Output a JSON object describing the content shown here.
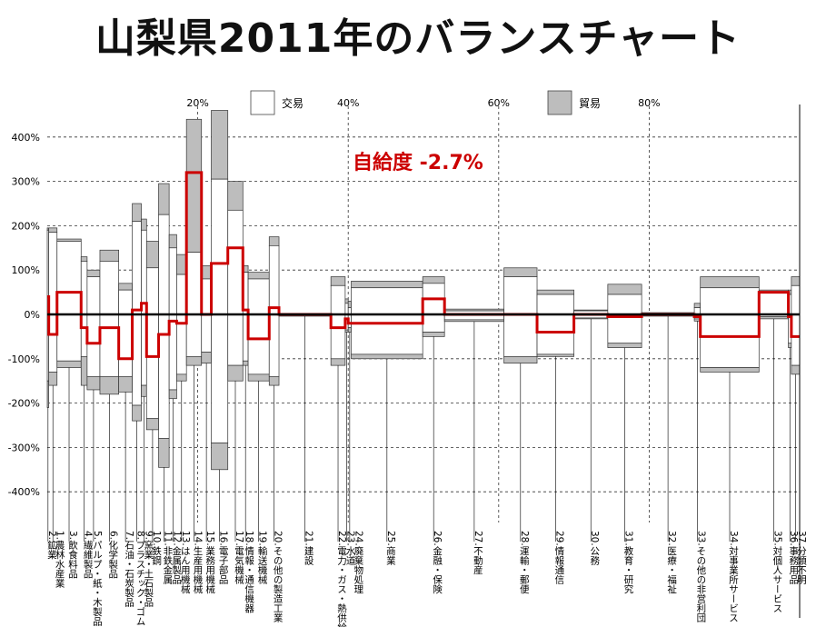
{
  "title": "山梨県2011年のバランスチャート",
  "chart_data": {
    "type": "bar",
    "title": "山梨県2011年のバランスチャート",
    "xlabel": "",
    "ylabel": "",
    "ylim": [
      -450,
      470
    ],
    "xlim": [
      0,
      100
    ],
    "yticks": [
      400,
      300,
      200,
      100,
      0,
      -100,
      -200,
      -300,
      -400
    ],
    "ytick_labels": [
      "400%",
      "300%",
      "200%",
      "100%",
      "0%",
      "-100%",
      "-200%",
      "-300%",
      "-400%"
    ],
    "xticks": [
      20,
      40,
      60,
      80
    ],
    "xtick_labels": [
      "20%",
      "40%",
      "60%",
      "80%"
    ],
    "grid": true,
    "legend_position": "top",
    "legend": [
      {
        "name": "交易",
        "color": "#ffffff"
      },
      {
        "name": "貿易",
        "color": "#bdbdbd"
      }
    ],
    "annotation": "自給度  -2.7%",
    "self_sufficiency_line_color": "#cc0000",
    "categories": [
      {
        "label": "2.鉱業",
        "x0": 0.0,
        "x1": 0.2,
        "ex": 190,
        "im": -150,
        "ex_t": 195,
        "im_t": -210,
        "net": 40
      },
      {
        "label": "1.農林水産業",
        "x0": 0.2,
        "x1": 1.3,
        "ex": 185,
        "im": -130,
        "ex_t": 195,
        "im_t": -160,
        "net": -45
      },
      {
        "label": "3.飲食料品",
        "x0": 1.3,
        "x1": 4.5,
        "ex": 165,
        "im": -105,
        "ex_t": 170,
        "im_t": -120,
        "net": 50
      },
      {
        "label": "4.繊維製品",
        "x0": 4.5,
        "x1": 5.3,
        "ex": 120,
        "im": -95,
        "ex_t": 130,
        "im_t": -160,
        "net": -30
      },
      {
        "label": "5.パルプ・紙・木製品",
        "x0": 5.3,
        "x1": 7.0,
        "ex": 85,
        "im": -140,
        "ex_t": 100,
        "im_t": -170,
        "net": -65
      },
      {
        "label": "6.化学製品",
        "x0": 7.0,
        "x1": 9.5,
        "ex": 120,
        "im": -140,
        "ex_t": 145,
        "im_t": -180,
        "net": -30
      },
      {
        "label": "7.石油・石炭製品",
        "x0": 9.5,
        "x1": 11.3,
        "ex": 55,
        "im": -140,
        "ex_t": 70,
        "im_t": -175,
        "net": -100
      },
      {
        "label": "8.プラスチック・ゴム",
        "x0": 11.3,
        "x1": 12.5,
        "ex": 210,
        "im": -205,
        "ex_t": 250,
        "im_t": -240,
        "net": 10
      },
      {
        "label": "9.窯業・土石製品",
        "x0": 12.5,
        "x1": 13.2,
        "ex": 190,
        "im": -160,
        "ex_t": 215,
        "im_t": -185,
        "net": 25
      },
      {
        "label": "10.鉄鋼",
        "x0": 13.2,
        "x1": 14.8,
        "ex": 105,
        "im": -235,
        "ex_t": 165,
        "im_t": -260,
        "net": -95
      },
      {
        "label": "11.非鉄金属",
        "x0": 14.8,
        "x1": 16.2,
        "ex": 225,
        "im": -280,
        "ex_t": 295,
        "im_t": -345,
        "net": -45
      },
      {
        "label": "12.金属製品",
        "x0": 16.2,
        "x1": 17.2,
        "ex": 150,
        "im": -170,
        "ex_t": 180,
        "im_t": -190,
        "net": -15
      },
      {
        "label": "13.はん用機械",
        "x0": 17.2,
        "x1": 18.5,
        "ex": 90,
        "im": -135,
        "ex_t": 135,
        "im_t": -150,
        "net": -20
      },
      {
        "label": "14.生産用機械",
        "x0": 18.5,
        "x1": 20.5,
        "ex": 140,
        "im": -95,
        "ex_t": 440,
        "im_t": -115,
        "net": 320
      },
      {
        "label": "15.業務用機械",
        "x0": 20.5,
        "x1": 21.8,
        "ex": 80,
        "im": -85,
        "ex_t": 110,
        "im_t": -110,
        "net": 0
      },
      {
        "label": "16.電子部品",
        "x0": 21.8,
        "x1": 24.0,
        "ex": 305,
        "im": -290,
        "ex_t": 460,
        "im_t": -350,
        "net": 115
      },
      {
        "label": "17.電気機械",
        "x0": 24.0,
        "x1": 26.0,
        "ex": 235,
        "im": -115,
        "ex_t": 300,
        "im_t": -150,
        "net": 150
      },
      {
        "label": "18.情報・通信機器",
        "x0": 26.0,
        "x1": 26.7,
        "ex": 95,
        "im": -105,
        "ex_t": 110,
        "im_t": -115,
        "net": 10
      },
      {
        "label": "19.輸送機械",
        "x0": 26.7,
        "x1": 29.5,
        "ex": 80,
        "im": -135,
        "ex_t": 95,
        "im_t": -150,
        "net": -55
      },
      {
        "label": "20.その他の製造工業",
        "x0": 29.5,
        "x1": 30.8,
        "ex": 155,
        "im": -140,
        "ex_t": 175,
        "im_t": -160,
        "net": 15
      },
      {
        "label": "21.建設",
        "x0": 30.8,
        "x1": 37.7,
        "ex": 0,
        "im": -2,
        "ex_t": 2,
        "im_t": -4,
        "net": 0
      },
      {
        "label": "22.電力・ガス・熱供給",
        "x0": 37.7,
        "x1": 39.6,
        "ex": 65,
        "im": -100,
        "ex_t": 85,
        "im_t": -115,
        "net": -30
      },
      {
        "label": "23.水道",
        "x0": 39.6,
        "x1": 40.0,
        "ex": 25,
        "im": -35,
        "ex_t": 35,
        "im_t": -40,
        "net": -10
      },
      {
        "label": "24.廃棄物処理",
        "x0": 40.0,
        "x1": 40.4,
        "ex": 15,
        "im": -30,
        "ex_t": 30,
        "im_t": -40,
        "net": -20
      },
      {
        "label": "25.商業",
        "x0": 40.4,
        "x1": 49.9,
        "ex": 60,
        "im": -90,
        "ex_t": 75,
        "im_t": -100,
        "net": -20
      },
      {
        "label": "26.金融・保険",
        "x0": 49.9,
        "x1": 52.8,
        "ex": 70,
        "im": -40,
        "ex_t": 85,
        "im_t": -50,
        "net": 35
      },
      {
        "label": "27.不動産",
        "x0": 52.8,
        "x1": 60.7,
        "ex": 8,
        "im": -12,
        "ex_t": 12,
        "im_t": -16,
        "net": 0
      },
      {
        "label": "28.運輸・郵便",
        "x0": 60.7,
        "x1": 65.1,
        "ex": 85,
        "im": -95,
        "ex_t": 105,
        "im_t": -110,
        "net": 0
      },
      {
        "label": "29.情報通信",
        "x0": 65.1,
        "x1": 70.0,
        "ex": 45,
        "im": -90,
        "ex_t": 55,
        "im_t": -95,
        "net": -40
      },
      {
        "label": "30.公務",
        "x0": 70.0,
        "x1": 74.5,
        "ex": 8,
        "im": -8,
        "ex_t": 10,
        "im_t": -10,
        "net": 0
      },
      {
        "label": "31.教育・研究",
        "x0": 74.5,
        "x1": 79.0,
        "ex": 45,
        "im": -65,
        "ex_t": 68,
        "im_t": -75,
        "net": -5
      },
      {
        "label": "32.医療・福祉",
        "x0": 79.0,
        "x1": 86.0,
        "ex": 2,
        "im": -2,
        "ex_t": 4,
        "im_t": -4,
        "net": 0
      },
      {
        "label": "33.その他の非営利団",
        "x0": 86.0,
        "x1": 86.8,
        "ex": 15,
        "im": -10,
        "ex_t": 25,
        "im_t": -15,
        "net": -5
      },
      {
        "label": "34.対事業所サービス",
        "x0": 86.8,
        "x1": 94.6,
        "ex": 60,
        "im": -120,
        "ex_t": 85,
        "im_t": -130,
        "net": -50
      },
      {
        "label": "35.対個人サービス",
        "x0": 94.6,
        "x1": 98.5,
        "ex": 50,
        "im": -5,
        "ex_t": 55,
        "im_t": -10,
        "net": 50
      },
      {
        "label": "36.事務用品",
        "x0": 98.5,
        "x1": 98.9,
        "ex": 45,
        "im": -65,
        "ex_t": 55,
        "im_t": -75,
        "net": -5
      },
      {
        "label": "37.分類不明",
        "x0": 98.9,
        "x1": 100.0,
        "ex": 65,
        "im": -115,
        "ex_t": 85,
        "im_t": -135,
        "net": -50
      }
    ]
  }
}
